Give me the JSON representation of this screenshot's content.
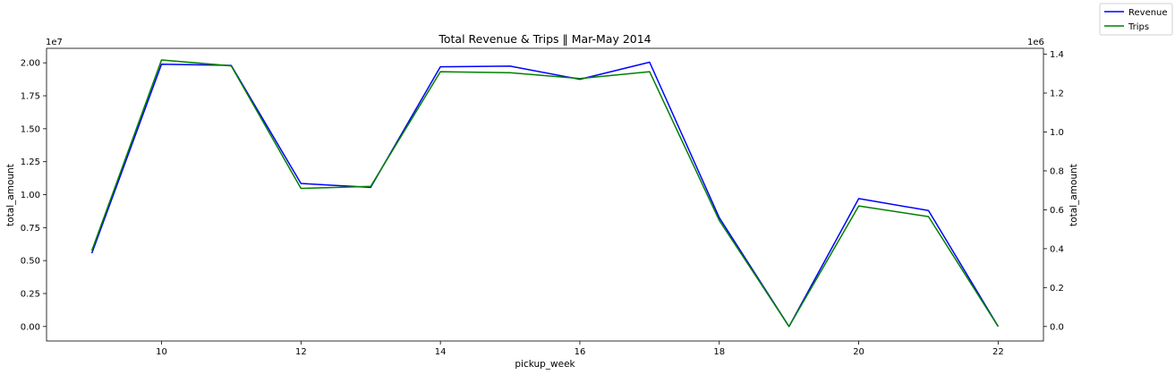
{
  "chart_data": {
    "type": "line",
    "title": "Total Revenue & Trips  ‖  Mar-May 2014",
    "xlabel": "pickup_week",
    "ylabel_left": "total_amount",
    "ylabel_right": "total_amount",
    "y_offset_left": "1e7",
    "y_offset_right": "1e6",
    "xlim": [
      8.35,
      22.65
    ],
    "ylim_left": [
      -0.11,
      2.11
    ],
    "ylim_right": [
      -0.0745,
      1.43
    ],
    "xticks": [
      10,
      12,
      14,
      16,
      18,
      20,
      22
    ],
    "xtick_labels": [
      "10",
      "12",
      "14",
      "16",
      "18",
      "20",
      "22"
    ],
    "yticks_left": [
      0,
      0.25,
      0.5,
      0.75,
      1.0,
      1.25,
      1.5,
      1.75,
      2.0
    ],
    "ytick_labels_left": [
      "0.00",
      "0.25",
      "0.50",
      "0.75",
      "1.00",
      "1.25",
      "1.50",
      "1.75",
      "2.00"
    ],
    "yticks_right": [
      0,
      0.2,
      0.4,
      0.6,
      0.8,
      1.0,
      1.2,
      1.4
    ],
    "ytick_labels_right": [
      "0.0",
      "0.2",
      "0.4",
      "0.6",
      "0.8",
      "1.0",
      "1.2",
      "1.4"
    ],
    "grid": false,
    "legend_position": "top-right (outside)",
    "x": [
      9,
      10,
      11,
      12,
      13,
      14,
      15,
      16,
      17,
      18,
      19,
      20,
      21,
      22
    ],
    "series": [
      {
        "name": "Revenue",
        "axis": "left",
        "color": "#0000ff",
        "values": [
          0.555,
          1.99,
          1.98,
          1.085,
          1.055,
          1.97,
          1.975,
          1.875,
          2.005,
          0.825,
          0.0,
          0.97,
          0.88,
          0.0
        ]
      },
      {
        "name": "Trips",
        "axis": "right",
        "color": "#008000",
        "values": [
          0.39,
          1.37,
          1.34,
          0.71,
          0.72,
          1.31,
          1.305,
          1.275,
          1.31,
          0.545,
          0.0,
          0.62,
          0.565,
          0.0
        ]
      }
    ]
  }
}
